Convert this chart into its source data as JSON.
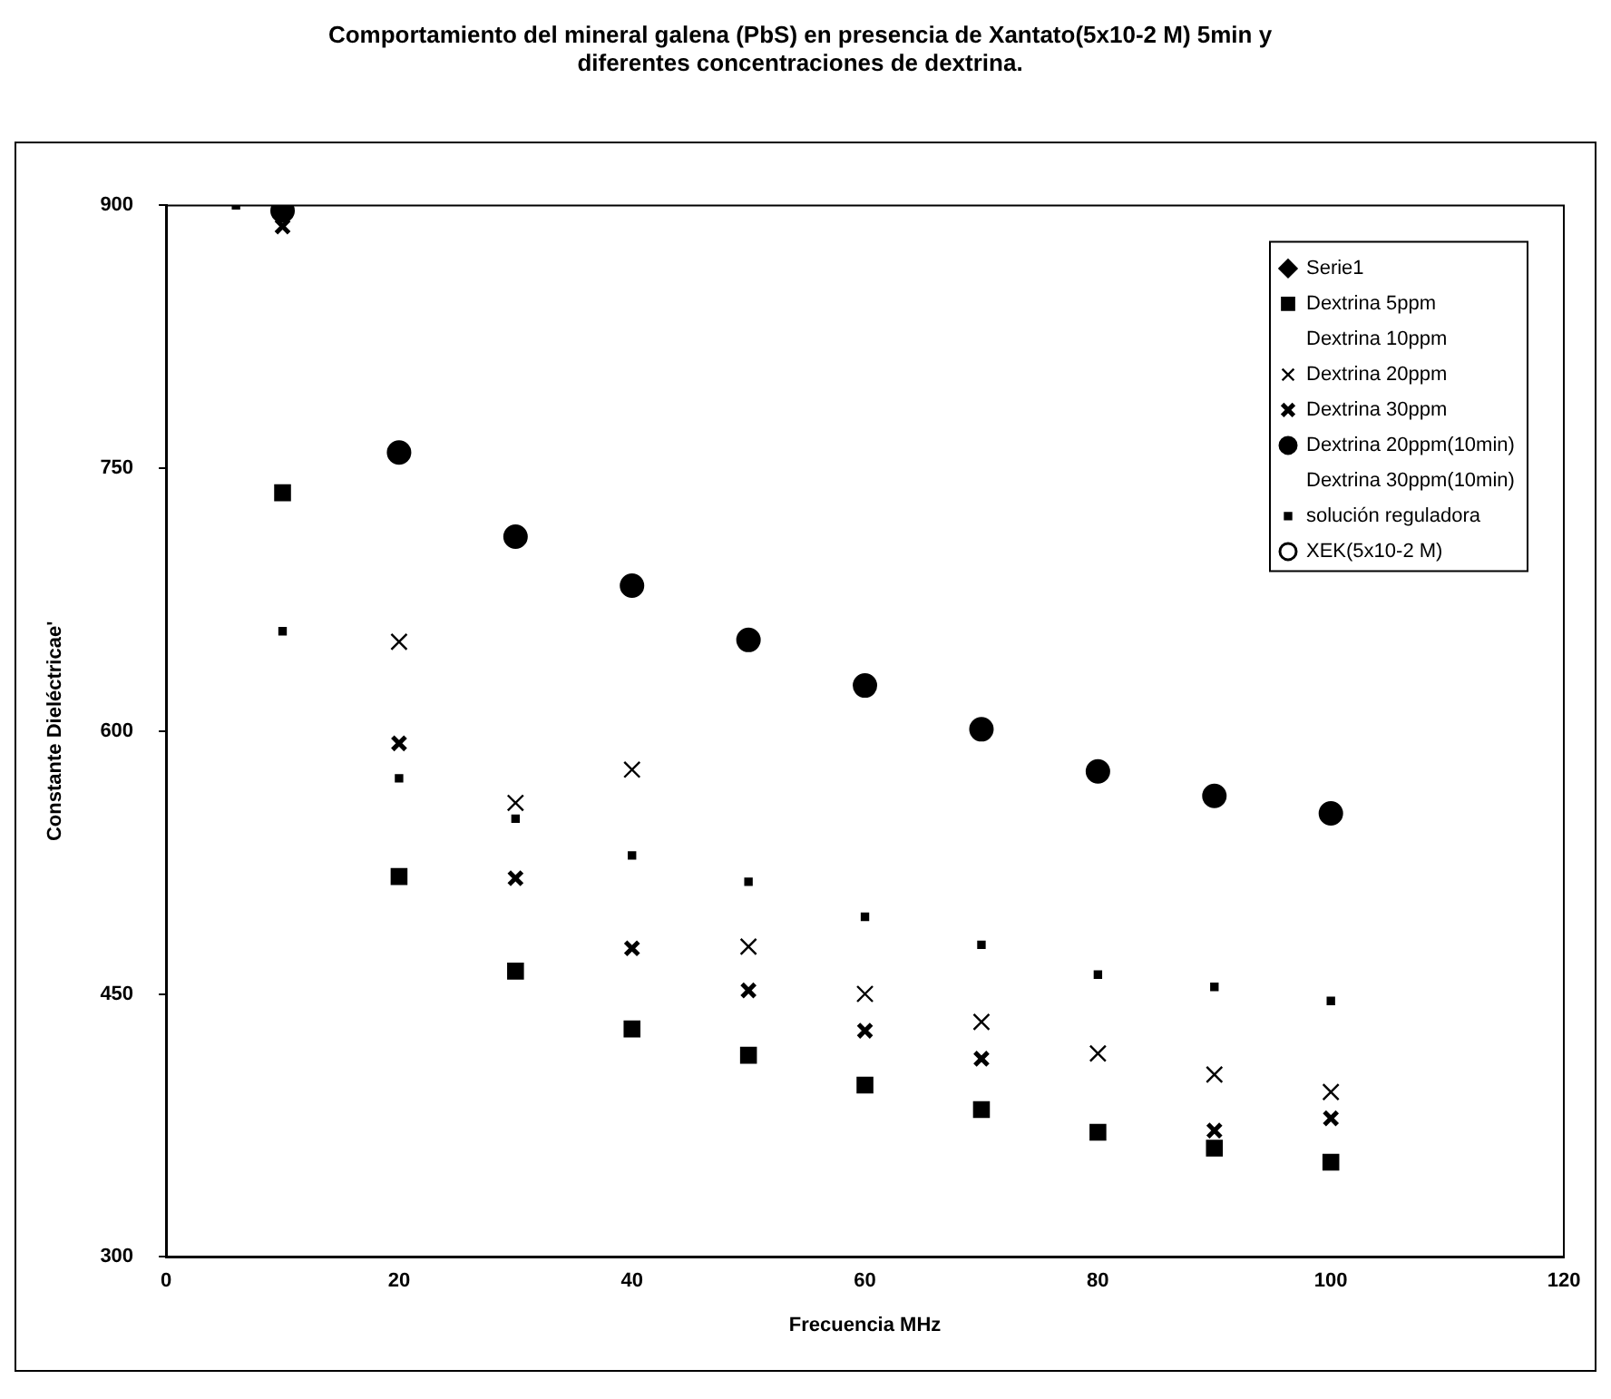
{
  "chart_data": {
    "type": "scatter",
    "title": [
      "Comportamiento del mineral galena (PbS) en presencia de Xantato(5x10-2 M) 5min y",
      "diferentes concentraciones de dextrina."
    ],
    "xlabel": "Frecuencia MHz",
    "ylabel": "Constante Dieléctricae'",
    "x": [
      10,
      20,
      30,
      40,
      50,
      60,
      70,
      80,
      90,
      100
    ],
    "series": [
      {
        "name": "Serie1",
        "color": "#000000",
        "marker": "diamond",
        "values": [
          null,
          null,
          null,
          null,
          null,
          null,
          null,
          null,
          null,
          null
        ]
      },
      {
        "name": "Dextrina 5ppm",
        "color": "#000000",
        "marker": "square",
        "values": [
          736,
          517,
          463,
          430,
          415,
          398,
          384,
          371,
          362,
          354
        ]
      },
      {
        "name": "Dextrina 10ppm",
        "color": "#000000",
        "marker": "none",
        "values": [
          null,
          null,
          null,
          null,
          null,
          null,
          null,
          null,
          null,
          null
        ]
      },
      {
        "name": "Dextrina 20ppm",
        "color": "#000000",
        "marker": "cross",
        "values": [
          null,
          651,
          559,
          578,
          477,
          450,
          434,
          416,
          404,
          394
        ]
      },
      {
        "name": "Dextrina 30ppm",
        "color": "#000000",
        "marker": "cross",
        "values": [
          888,
          593,
          516,
          476,
          452,
          429,
          413,
          null,
          372,
          379
        ]
      },
      {
        "name": "Dextrina 20ppm(10min)",
        "color": "#000000",
        "marker": "circle",
        "values": [
          897,
          759,
          711,
          683,
          652,
          626,
          601,
          577,
          563,
          553
        ]
      },
      {
        "name": "Dextrina 30ppm(10min)",
        "color": "#000000",
        "marker": "none",
        "values": [
          null,
          null,
          null,
          null,
          null,
          null,
          null,
          null,
          null,
          null
        ]
      },
      {
        "name": "solución reguladora",
        "color": "#000000",
        "marker": "square",
        "x": [
          6,
          10,
          20,
          30,
          40,
          50,
          60,
          70,
          80,
          90,
          100
        ],
        "values": [
          900,
          657,
          573,
          550,
          529,
          514,
          494,
          478,
          461,
          454,
          446
        ]
      },
      {
        "name": "XEK(5x10-2 M)",
        "color": "#000000",
        "marker": "circle-open",
        "values": [
          null,
          null,
          null,
          null,
          null,
          null,
          null,
          null,
          null,
          null
        ]
      }
    ],
    "xlim": [
      0,
      120
    ],
    "xticks": [
      0,
      20,
      40,
      60,
      80,
      100,
      120
    ],
    "ylim": [
      300,
      900
    ],
    "yticks": [
      300,
      450,
      600,
      750,
      900
    ],
    "grid": false,
    "legend": "top right"
  }
}
